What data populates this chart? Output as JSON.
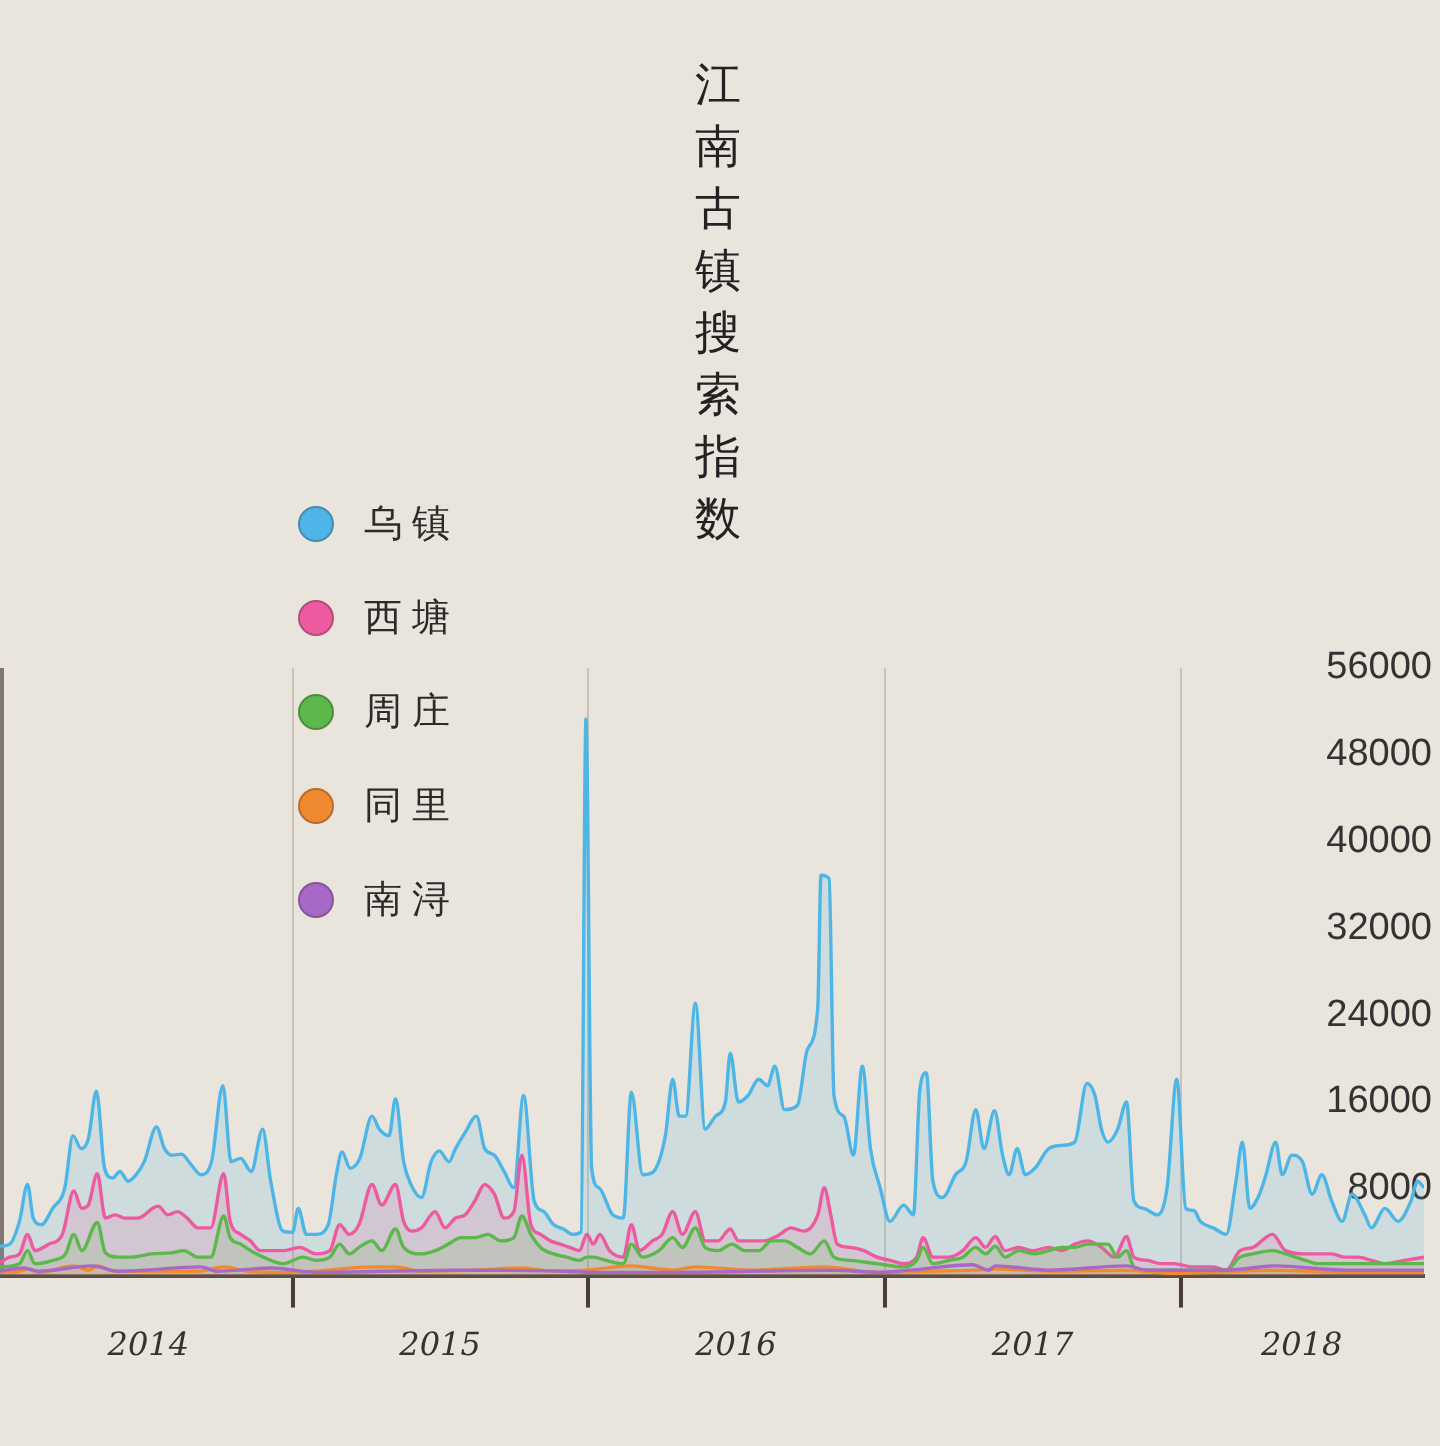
{
  "chart_data": {
    "type": "area",
    "title": "江南古镇搜索指数",
    "xlim": [
      "2014-01-05",
      "2018-10-28"
    ],
    "xticks": [
      {
        "value": "2014-07-07",
        "label": "2014"
      },
      {
        "value": "2015-01-01",
        "label": null
      },
      {
        "value": "2015-07-02",
        "label": "2015"
      },
      {
        "value": "2016-01-01",
        "label": null
      },
      {
        "value": "2016-07-01",
        "label": "2016"
      },
      {
        "value": "2017-01-01",
        "label": null
      },
      {
        "value": "2017-07-02",
        "label": "2017"
      },
      {
        "value": "2018-01-01",
        "label": null
      },
      {
        "value": "2018-05-30",
        "label": "2018"
      }
    ],
    "ylim": [
      0,
      56000
    ],
    "yticks": [
      8000,
      16000,
      24000,
      32000,
      40000,
      48000,
      56000
    ],
    "grid": "x",
    "legend": "top left",
    "series": [
      {
        "name": "乌镇",
        "color": "#4db6e6",
        "x": [
          "2014-01-05",
          "2014-01-17",
          "2014-01-29",
          "2014-02-08",
          "2014-02-15",
          "2014-02-25",
          "2014-03-11",
          "2014-03-26",
          "2014-04-05",
          "2014-04-15",
          "2014-04-24",
          "2014-05-04",
          "2014-05-14",
          "2014-05-24",
          "2014-06-02",
          "2014-06-12",
          "2014-06-22",
          "2014-07-02",
          "2014-07-17",
          "2014-07-27",
          "2014-08-05",
          "2014-08-17",
          "2014-08-29",
          "2014-09-10",
          "2014-09-23",
          "2014-10-07",
          "2014-10-17",
          "2014-10-29",
          "2014-11-11",
          "2014-11-25",
          "2014-12-05",
          "2014-12-20",
          "2015-01-01",
          "2015-01-08",
          "2015-01-18",
          "2015-01-30",
          "2015-02-14",
          "2015-02-24",
          "2015-03-03",
          "2015-03-13",
          "2015-03-25",
          "2015-04-09",
          "2015-04-18",
          "2015-04-30",
          "2015-05-08",
          "2015-05-18",
          "2015-05-27",
          "2015-06-09",
          "2015-06-21",
          "2015-07-01",
          "2015-07-13",
          "2015-07-21",
          "2015-08-02",
          "2015-08-16",
          "2015-08-26",
          "2015-09-07",
          "2015-09-19",
          "2015-10-01",
          "2015-10-13",
          "2015-10-26",
          "2015-11-07",
          "2015-11-19",
          "2015-12-01",
          "2015-12-13",
          "2015-12-23",
          "2015-12-29",
          "2016-01-05",
          "2016-01-14",
          "2016-01-31",
          "2016-02-13",
          "2016-02-23",
          "2016-03-08",
          "2016-03-20",
          "2016-04-05",
          "2016-04-14",
          "2016-04-22",
          "2016-04-30",
          "2016-05-12",
          "2016-05-24",
          "2016-06-06",
          "2016-06-18",
          "2016-06-24",
          "2016-07-04",
          "2016-07-16",
          "2016-07-29",
          "2016-08-09",
          "2016-08-18",
          "2016-08-30",
          "2016-09-15",
          "2016-09-27",
          "2016-10-10",
          "2016-10-14",
          "2016-10-24",
          "2016-10-30",
          "2016-11-11",
          "2016-11-23",
          "2016-12-04",
          "2016-12-14",
          "2016-12-26",
          "2017-01-07",
          "2017-01-24",
          "2017-02-05",
          "2017-02-13",
          "2017-02-21",
          "2017-03-01",
          "2017-03-13",
          "2017-03-29",
          "2017-04-11",
          "2017-04-23",
          "2017-05-03",
          "2017-05-16",
          "2017-05-26",
          "2017-06-03",
          "2017-06-13",
          "2017-06-23",
          "2017-07-05",
          "2017-07-22",
          "2017-08-07",
          "2017-08-23",
          "2017-09-07",
          "2017-09-17",
          "2017-09-25",
          "2017-10-03",
          "2017-10-15",
          "2017-10-26",
          "2017-11-04",
          "2017-11-16",
          "2017-12-03",
          "2017-12-15",
          "2017-12-27",
          "2018-01-07",
          "2018-01-17",
          "2018-01-25",
          "2018-02-10",
          "2018-02-26",
          "2018-03-10",
          "2018-03-18",
          "2018-03-27",
          "2018-04-08",
          "2018-04-16",
          "2018-04-28",
          "2018-05-06",
          "2018-05-18",
          "2018-05-31",
          "2018-06-12",
          "2018-06-24",
          "2018-07-06",
          "2018-07-19",
          "2018-07-31",
          "2018-08-16",
          "2018-08-24",
          "2018-09-10",
          "2018-09-26",
          "2018-10-12",
          "2018-10-20",
          "2018-10-28"
        ],
        "values": [
          2700,
          2900,
          5000,
          8400,
          5300,
          4700,
          6200,
          8100,
          12900,
          11700,
          12600,
          17000,
          9900,
          9000,
          9600,
          8700,
          9300,
          10500,
          13700,
          11700,
          11100,
          11200,
          10200,
          9300,
          10500,
          17500,
          10500,
          10800,
          9600,
          13500,
          8700,
          4100,
          4000,
          6200,
          3800,
          3800,
          4700,
          9300,
          11400,
          9900,
          10800,
          14700,
          13500,
          12900,
          16300,
          10500,
          8400,
          7200,
          10500,
          11500,
          10500,
          11700,
          13200,
          14700,
          11700,
          11100,
          9600,
          8100,
          16600,
          6900,
          5900,
          4700,
          4300,
          3800,
          4000,
          51300,
          9900,
          8100,
          5600,
          5300,
          16900,
          9300,
          9500,
          12900,
          18100,
          14700,
          14700,
          25100,
          13500,
          14700,
          16000,
          20500,
          16000,
          16600,
          18100,
          17500,
          19300,
          15300,
          15700,
          20800,
          24700,
          36900,
          36600,
          16600,
          14700,
          11100,
          19300,
          11700,
          8100,
          5000,
          6500,
          5600,
          17200,
          18700,
          8700,
          7200,
          9300,
          10500,
          15300,
          11700,
          15200,
          11100,
          9300,
          11700,
          9300,
          9900,
          11700,
          12000,
          12300,
          17700,
          16600,
          13500,
          12300,
          13500,
          16000,
          6900,
          6200,
          5600,
          8100,
          18100,
          6200,
          6000,
          5000,
          4400,
          3800,
          8700,
          12300,
          6200,
          7500,
          9300,
          12300,
          9300,
          11100,
          10500,
          7500,
          9300,
          6900,
          5000,
          7500,
          5600,
          4400,
          6200,
          5000,
          6900,
          8700,
          8100
        ]
      },
      {
        "name": "西塘",
        "color": "#ec5aa0",
        "x": [
          "2014-01-05",
          "2014-01-17",
          "2014-01-29",
          "2014-02-08",
          "2014-02-17",
          "2014-03-06",
          "2014-03-23",
          "2014-04-06",
          "2014-04-16",
          "2014-04-24",
          "2014-05-05",
          "2014-05-15",
          "2014-05-27",
          "2014-06-08",
          "2014-06-24",
          "2014-07-19",
          "2014-07-31",
          "2014-08-12",
          "2014-08-24",
          "2014-09-06",
          "2014-09-22",
          "2014-10-08",
          "2014-10-16",
          "2014-10-29",
          "2014-11-10",
          "2014-11-22",
          "2014-12-20",
          "2015-01-10",
          "2015-01-30",
          "2015-02-16",
          "2015-02-28",
          "2015-03-12",
          "2015-03-24",
          "2015-04-09",
          "2015-04-21",
          "2015-05-08",
          "2015-05-18",
          "2015-05-28",
          "2015-06-09",
          "2015-06-26",
          "2015-07-08",
          "2015-07-21",
          "2015-08-02",
          "2015-08-14",
          "2015-08-26",
          "2015-09-07",
          "2015-09-19",
          "2015-10-01",
          "2015-10-11",
          "2015-10-22",
          "2015-11-03",
          "2015-11-15",
          "2015-11-27",
          "2015-12-09",
          "2015-12-21",
          "2015-12-30",
          "2016-01-07",
          "2016-01-15",
          "2016-01-27",
          "2016-02-13",
          "2016-02-23",
          "2016-03-04",
          "2016-03-20",
          "2016-04-01",
          "2016-04-14",
          "2016-04-26",
          "2016-05-12",
          "2016-05-24",
          "2016-06-09",
          "2016-06-24",
          "2016-07-04",
          "2016-07-20",
          "2016-08-05",
          "2016-08-22",
          "2016-09-07",
          "2016-09-23",
          "2016-10-10",
          "2016-10-18",
          "2016-10-26",
          "2016-11-03",
          "2016-11-19",
          "2016-12-06",
          "2016-12-22",
          "2017-01-07",
          "2017-01-24",
          "2017-02-09",
          "2017-02-17",
          "2017-03-01",
          "2017-03-21",
          "2017-04-07",
          "2017-04-23",
          "2017-05-05",
          "2017-05-17",
          "2017-05-29",
          "2017-06-15",
          "2017-07-02",
          "2017-07-22",
          "2017-08-07",
          "2017-08-23",
          "2017-09-08",
          "2017-09-25",
          "2017-10-11",
          "2017-10-26",
          "2017-11-04",
          "2017-11-21",
          "2017-12-07",
          "2017-12-23",
          "2018-01-17",
          "2018-02-10",
          "2018-02-26",
          "2018-03-15",
          "2018-03-31",
          "2018-04-24",
          "2018-05-10",
          "2018-06-04",
          "2018-06-20",
          "2018-07-06",
          "2018-07-23",
          "2018-08-08",
          "2018-08-24",
          "2018-09-10",
          "2018-10-04",
          "2018-10-28"
        ],
        "values": [
          1200,
          1700,
          2000,
          3800,
          2300,
          2900,
          3800,
          7800,
          6200,
          6500,
          9400,
          5300,
          5600,
          5300,
          5300,
          6400,
          5600,
          5900,
          5300,
          4400,
          4400,
          9400,
          5000,
          3800,
          3200,
          2300,
          2300,
          2600,
          2000,
          2300,
          4700,
          3800,
          4700,
          8400,
          6500,
          8400,
          5000,
          4100,
          4400,
          5900,
          4400,
          5300,
          5600,
          6900,
          8400,
          7500,
          5300,
          5900,
          11100,
          4700,
          3800,
          3200,
          2900,
          2600,
          2300,
          3800,
          2900,
          3800,
          2300,
          1700,
          4700,
          2300,
          3200,
          3800,
          5900,
          3800,
          5900,
          3200,
          3200,
          4300,
          3200,
          3200,
          3200,
          3700,
          4400,
          4100,
          5600,
          8100,
          5600,
          2900,
          2600,
          2300,
          1700,
          1400,
          1100,
          1700,
          3500,
          1700,
          1700,
          2300,
          3500,
          2600,
          3600,
          2300,
          2600,
          2300,
          2600,
          2300,
          2900,
          3200,
          2600,
          1700,
          3600,
          1700,
          1400,
          1100,
          1100,
          800,
          800,
          500,
          2300,
          2600,
          3800,
          2300,
          2000,
          2000,
          2000,
          1700,
          1700,
          1400,
          1100,
          1400,
          1700
        ]
      },
      {
        "name": "周庄",
        "color": "#5cb84a",
        "x": [
          "2014-01-05",
          "2014-01-29",
          "2014-02-08",
          "2014-02-17",
          "2014-03-11",
          "2014-03-27",
          "2014-04-06",
          "2014-04-16",
          "2014-05-05",
          "2014-05-15",
          "2014-05-31",
          "2014-06-16",
          "2014-07-11",
          "2014-08-04",
          "2014-08-20",
          "2014-09-06",
          "2014-09-22",
          "2014-10-08",
          "2014-10-16",
          "2014-10-29",
          "2014-11-10",
          "2014-11-26",
          "2014-12-20",
          "2015-01-14",
          "2015-01-30",
          "2015-02-16",
          "2015-02-28",
          "2015-03-12",
          "2015-03-24",
          "2015-04-09",
          "2015-04-21",
          "2015-05-08",
          "2015-05-18",
          "2015-06-09",
          "2015-06-26",
          "2015-07-12",
          "2015-07-28",
          "2015-08-14",
          "2015-08-30",
          "2015-09-15",
          "2015-10-01",
          "2015-10-11",
          "2015-10-22",
          "2015-11-03",
          "2015-11-19",
          "2015-12-05",
          "2015-12-21",
          "2015-12-30",
          "2016-01-07",
          "2016-01-23",
          "2016-02-13",
          "2016-02-23",
          "2016-03-08",
          "2016-03-28",
          "2016-04-14",
          "2016-04-26",
          "2016-05-12",
          "2016-05-24",
          "2016-06-09",
          "2016-06-26",
          "2016-07-12",
          "2016-07-29",
          "2016-08-14",
          "2016-08-30",
          "2016-09-15",
          "2016-10-01",
          "2016-10-18",
          "2016-10-30",
          "2016-11-19",
          "2016-12-22",
          "2017-01-24",
          "2017-02-09",
          "2017-02-17",
          "2017-03-01",
          "2017-03-21",
          "2017-04-07",
          "2017-04-23",
          "2017-05-05",
          "2017-05-17",
          "2017-05-29",
          "2017-06-15",
          "2017-07-05",
          "2017-07-22",
          "2017-08-07",
          "2017-08-23",
          "2017-09-08",
          "2017-10-03",
          "2017-10-15",
          "2017-10-26",
          "2017-11-04",
          "2017-11-21",
          "2017-12-23",
          "2018-01-25",
          "2018-02-26",
          "2018-03-15",
          "2018-03-31",
          "2018-04-24",
          "2018-05-10",
          "2018-06-04",
          "2018-06-20",
          "2018-07-15",
          "2018-08-24",
          "2018-10-04",
          "2018-10-28"
        ],
        "values": [
          800,
          1100,
          2300,
          1100,
          1400,
          2000,
          3800,
          2300,
          4900,
          2100,
          1700,
          1700,
          2000,
          2100,
          2300,
          1700,
          1700,
          5500,
          3500,
          2900,
          2300,
          1700,
          1100,
          1700,
          1400,
          1700,
          2900,
          2000,
          2600,
          3200,
          2300,
          4300,
          2600,
          2000,
          2300,
          2900,
          3500,
          3500,
          3800,
          3200,
          3500,
          5500,
          3800,
          2600,
          2000,
          1700,
          1400,
          1700,
          1700,
          1400,
          1100,
          2900,
          1700,
          2300,
          3500,
          2600,
          4400,
          2600,
          2300,
          2900,
          2300,
          2300,
          3200,
          3200,
          2600,
          2000,
          3200,
          1700,
          1400,
          1100,
          800,
          1400,
          2600,
          1100,
          1400,
          1700,
          2600,
          2000,
          2700,
          1700,
          2300,
          2000,
          2300,
          2600,
          2600,
          2900,
          2900,
          1700,
          2300,
          800,
          500,
          500,
          500,
          500,
          1700,
          2000,
          2300,
          2000,
          1400,
          1100,
          1100,
          1100,
          1100,
          1100
        ]
      },
      {
        "name": "同里",
        "color": "#f08a30",
        "x": [
          "2014-01-05",
          "2014-01-29",
          "2014-02-08",
          "2014-02-22",
          "2014-04-06",
          "2014-04-24",
          "2014-05-05",
          "2014-05-26",
          "2014-07-19",
          "2014-09-06",
          "2014-10-08",
          "2014-11-06",
          "2014-12-20",
          "2015-01-30",
          "2015-04-09",
          "2015-05-08",
          "2015-06-09",
          "2015-08-14",
          "2015-10-11",
          "2015-11-19",
          "2015-12-30",
          "2016-02-23",
          "2016-04-14",
          "2016-05-12",
          "2016-07-20",
          "2016-10-18",
          "2016-12-22",
          "2017-02-17",
          "2017-04-23",
          "2017-05-17",
          "2017-07-22",
          "2017-10-26",
          "2017-12-23",
          "2018-03-15",
          "2018-04-24",
          "2018-07-23",
          "2018-10-28"
        ],
        "values": [
          300,
          400,
          600,
          300,
          900,
          500,
          900,
          400,
          400,
          400,
          800,
          400,
          300,
          400,
          800,
          800,
          400,
          500,
          700,
          400,
          500,
          900,
          500,
          800,
          500,
          800,
          300,
          400,
          500,
          600,
          400,
          500,
          200,
          400,
          500,
          300,
          300
        ]
      },
      {
        "name": "南浔",
        "color": "#a868c8",
        "type": "line",
        "x": [
          "2014-01-05",
          "2014-02-03",
          "2014-02-22",
          "2014-04-29",
          "2014-05-31",
          "2014-09-10",
          "2014-09-30",
          "2014-12-05",
          "2015-01-30",
          "2015-07-21",
          "2015-12-01",
          "2016-01-07",
          "2016-02-13",
          "2016-04-14",
          "2016-10-26",
          "2016-12-26",
          "2017-02-01",
          "2017-04-19",
          "2017-05-09",
          "2017-05-17",
          "2017-07-22",
          "2017-10-26",
          "2017-11-21",
          "2018-02-26",
          "2018-04-28",
          "2018-07-23",
          "2018-10-28"
        ],
        "values": [
          400,
          700,
          400,
          900,
          400,
          800,
          400,
          700,
          300,
          500,
          400,
          300,
          300,
          300,
          500,
          300,
          500,
          1000,
          500,
          900,
          500,
          900,
          500,
          500,
          900,
          500,
          500
        ]
      }
    ]
  }
}
